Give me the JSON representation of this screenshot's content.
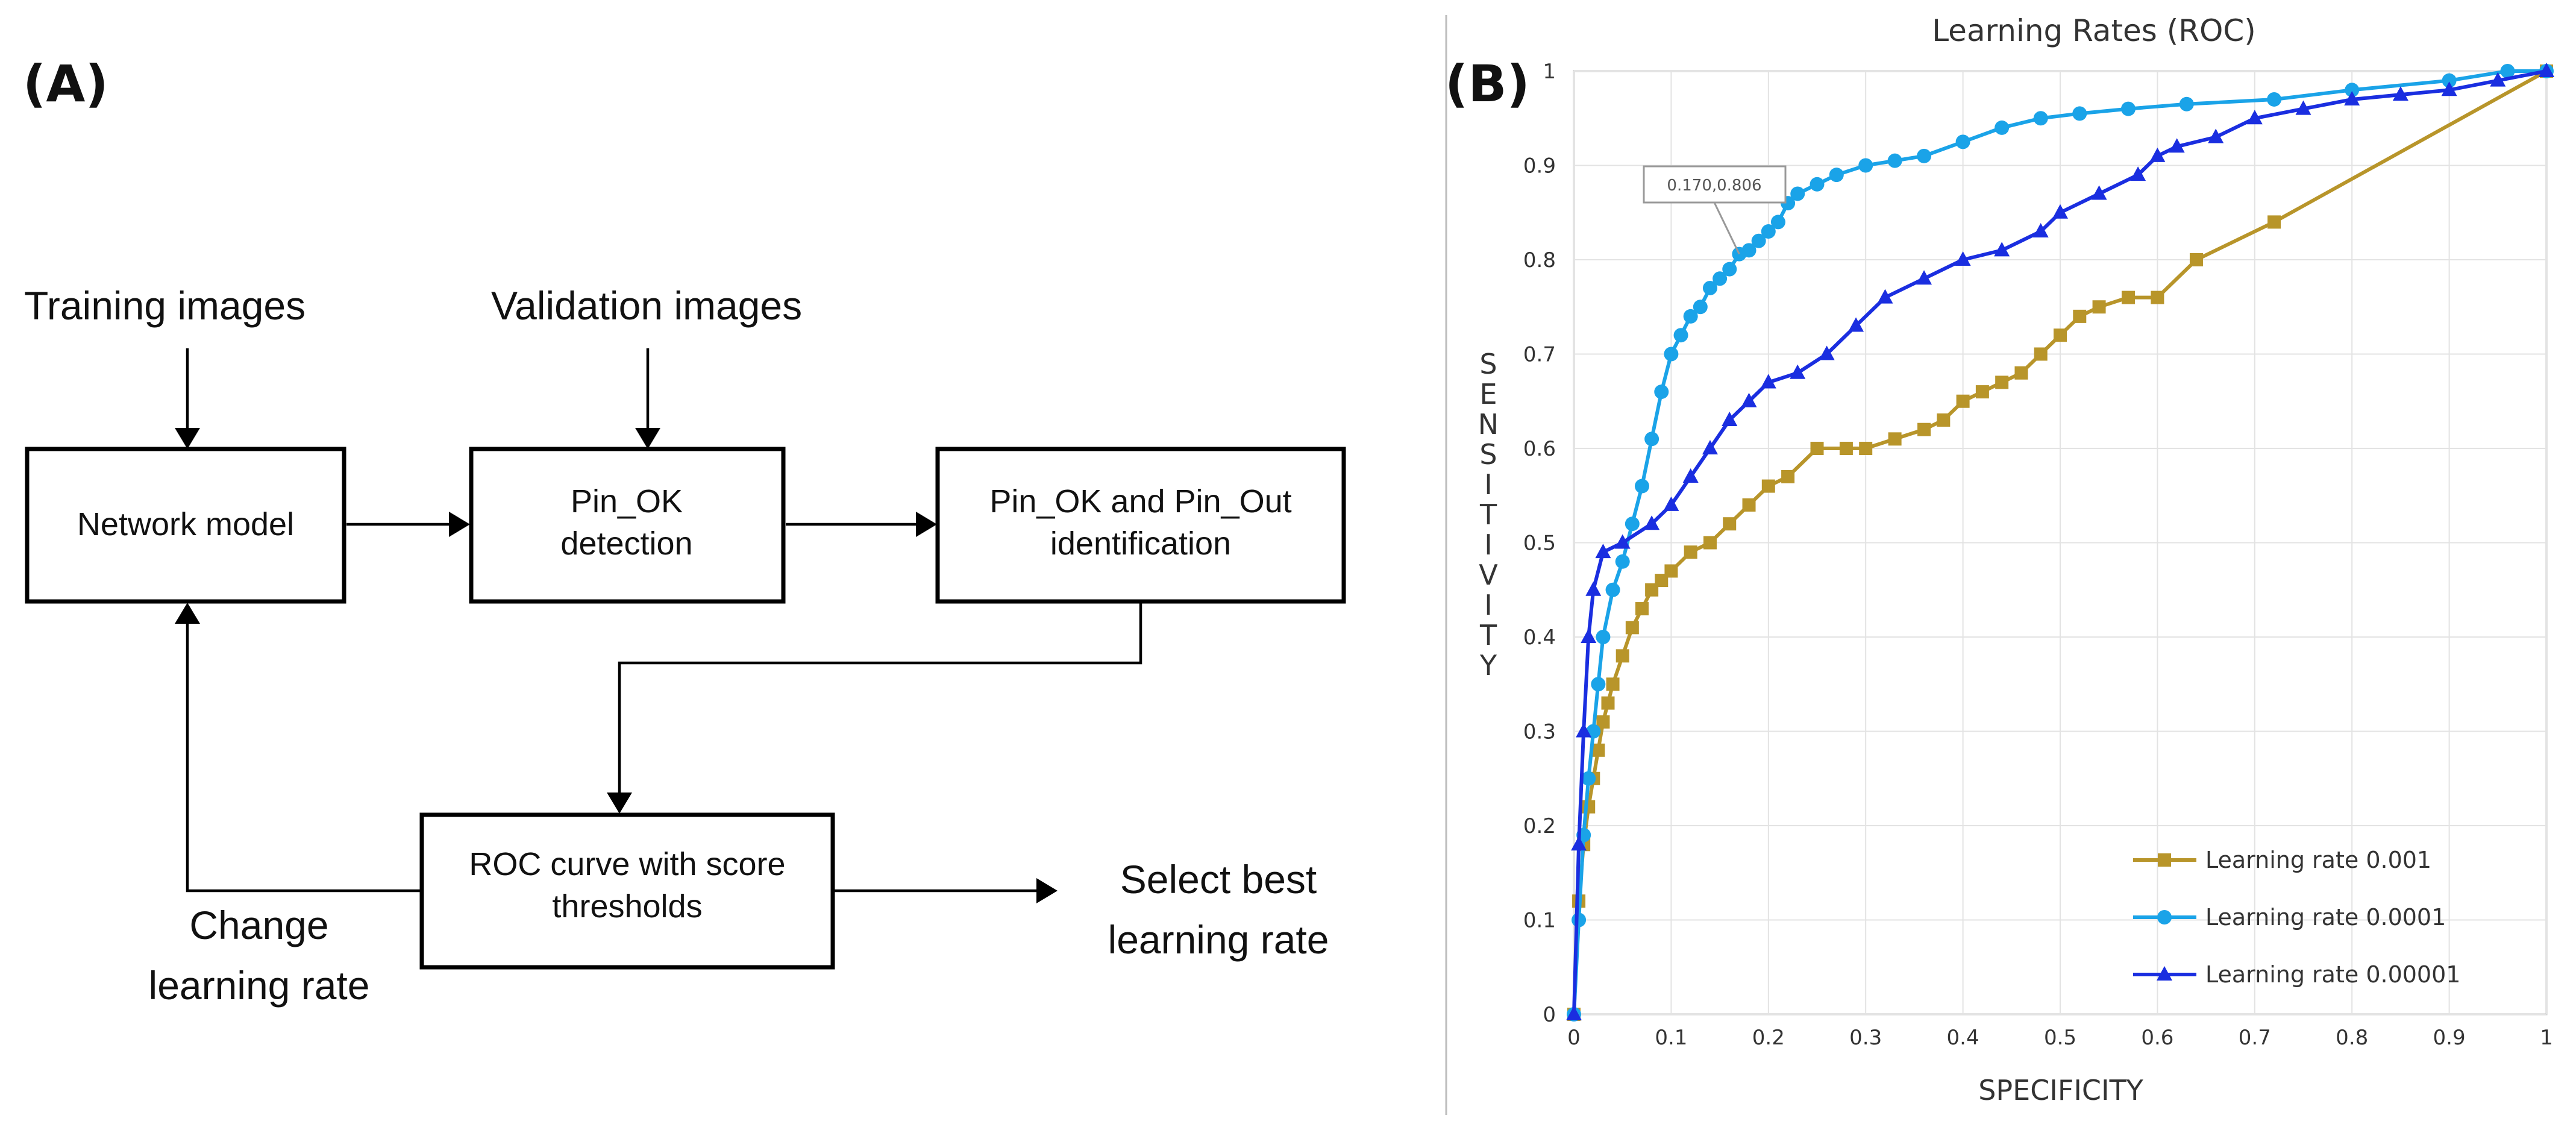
{
  "panel_a": {
    "label": "(A)",
    "inputs": {
      "training": "Training images",
      "validation": "Validation images"
    },
    "boxes": {
      "network": [
        "Network model"
      ],
      "detection": [
        "Pin_OK",
        "detection"
      ],
      "identification": [
        "Pin_OK and Pin_Out",
        "identification"
      ],
      "roc": [
        "ROC curve with score",
        "thresholds"
      ]
    },
    "feedback": [
      "Change",
      "learning rate"
    ],
    "output": [
      "Select best",
      "learning rate"
    ]
  },
  "panel_b": {
    "label": "(B)"
  },
  "chart_data": {
    "type": "line",
    "title": "Learning Rates (ROC)",
    "xlabel": "SPECIFICITY",
    "ylabel": "SENSITIVITY",
    "xlim": [
      0,
      1
    ],
    "ylim": [
      0,
      1
    ],
    "x_ticks": [
      "0",
      "0.1",
      "0.2",
      "0.3",
      "0.4",
      "0.5",
      "0.6",
      "0.7",
      "0.8",
      "0.9",
      "1"
    ],
    "y_ticks": [
      "0",
      "0.1",
      "0.2",
      "0.3",
      "0.4",
      "0.5",
      "0.6",
      "0.7",
      "0.8",
      "0.9",
      "1"
    ],
    "annotation": {
      "text": "0.170,0.806",
      "x": 0.17,
      "y": 0.806
    },
    "legend_position": "bottom-right",
    "series": [
      {
        "name": "Learning rate 0.001",
        "color": "#b8952a",
        "marker": "square",
        "x": [
          0,
          0.005,
          0.01,
          0.015,
          0.02,
          0.025,
          0.03,
          0.035,
          0.04,
          0.05,
          0.06,
          0.07,
          0.08,
          0.09,
          0.1,
          0.12,
          0.14,
          0.16,
          0.18,
          0.2,
          0.22,
          0.25,
          0.28,
          0.3,
          0.33,
          0.36,
          0.38,
          0.4,
          0.42,
          0.44,
          0.46,
          0.48,
          0.5,
          0.52,
          0.54,
          0.57,
          0.6,
          0.64,
          0.72,
          1.0
        ],
        "y": [
          0,
          0.12,
          0.18,
          0.22,
          0.25,
          0.28,
          0.31,
          0.33,
          0.35,
          0.38,
          0.41,
          0.43,
          0.45,
          0.46,
          0.47,
          0.49,
          0.5,
          0.52,
          0.54,
          0.56,
          0.57,
          0.6,
          0.6,
          0.6,
          0.61,
          0.62,
          0.63,
          0.65,
          0.66,
          0.67,
          0.68,
          0.7,
          0.72,
          0.74,
          0.75,
          0.76,
          0.76,
          0.8,
          0.84,
          1.0
        ]
      },
      {
        "name": "Learning rate 0.0001",
        "color": "#1aa3e8",
        "marker": "circle",
        "x": [
          0,
          0.005,
          0.01,
          0.015,
          0.02,
          0.025,
          0.03,
          0.04,
          0.05,
          0.06,
          0.07,
          0.08,
          0.09,
          0.1,
          0.11,
          0.12,
          0.13,
          0.14,
          0.15,
          0.16,
          0.17,
          0.18,
          0.19,
          0.2,
          0.21,
          0.22,
          0.23,
          0.25,
          0.27,
          0.3,
          0.33,
          0.36,
          0.4,
          0.44,
          0.48,
          0.52,
          0.57,
          0.63,
          0.72,
          0.8,
          0.9,
          0.96,
          1.0
        ],
        "y": [
          0,
          0.1,
          0.19,
          0.25,
          0.3,
          0.35,
          0.4,
          0.45,
          0.48,
          0.52,
          0.56,
          0.61,
          0.66,
          0.7,
          0.72,
          0.74,
          0.75,
          0.77,
          0.78,
          0.79,
          0.806,
          0.81,
          0.82,
          0.83,
          0.84,
          0.86,
          0.87,
          0.88,
          0.89,
          0.9,
          0.905,
          0.91,
          0.925,
          0.94,
          0.95,
          0.955,
          0.96,
          0.965,
          0.97,
          0.98,
          0.99,
          1.0,
          1.0
        ]
      },
      {
        "name": "Learning rate 0.00001",
        "color": "#1a2ee0",
        "marker": "triangle",
        "x": [
          0,
          0.005,
          0.01,
          0.015,
          0.02,
          0.03,
          0.05,
          0.08,
          0.1,
          0.12,
          0.14,
          0.16,
          0.18,
          0.2,
          0.23,
          0.26,
          0.29,
          0.32,
          0.36,
          0.4,
          0.44,
          0.48,
          0.5,
          0.54,
          0.58,
          0.6,
          0.62,
          0.66,
          0.7,
          0.75,
          0.8,
          0.85,
          0.9,
          0.95,
          1.0
        ],
        "y": [
          0,
          0.18,
          0.3,
          0.4,
          0.45,
          0.49,
          0.5,
          0.52,
          0.54,
          0.57,
          0.6,
          0.63,
          0.65,
          0.67,
          0.68,
          0.7,
          0.73,
          0.76,
          0.78,
          0.8,
          0.81,
          0.83,
          0.85,
          0.87,
          0.89,
          0.91,
          0.92,
          0.93,
          0.95,
          0.96,
          0.97,
          0.975,
          0.98,
          0.99,
          1.0
        ]
      }
    ]
  }
}
